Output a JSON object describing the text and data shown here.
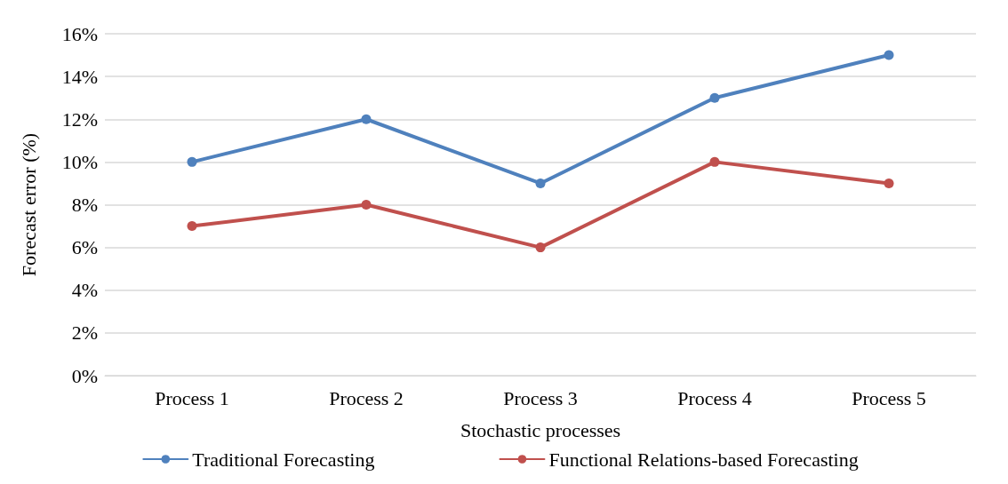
{
  "chart_data": {
    "type": "line",
    "xlabel": "Stochastic processes",
    "ylabel": "Forecast error (%)",
    "categories": [
      "Process 1",
      "Process 2",
      "Process 3",
      "Process 4",
      "Process 5"
    ],
    "series": [
      {
        "name": "Traditional Forecasting",
        "color": "#4f81bd",
        "values": [
          10,
          12,
          9,
          13,
          15
        ]
      },
      {
        "name": "Functional Relations-based Forecasting",
        "color": "#c0504d",
        "values": [
          7,
          8,
          6,
          10,
          9
        ]
      }
    ],
    "ylim": [
      0,
      16
    ],
    "yticks": [
      {
        "value": 0,
        "label": "0%"
      },
      {
        "value": 2,
        "label": "2%"
      },
      {
        "value": 4,
        "label": "4%"
      },
      {
        "value": 6,
        "label": "6%"
      },
      {
        "value": 8,
        "label": "8%"
      },
      {
        "value": 10,
        "label": "10%"
      },
      {
        "value": 12,
        "label": "12%"
      },
      {
        "value": 14,
        "label": "14%"
      },
      {
        "value": 16,
        "label": "16%"
      }
    ],
    "grid": "y",
    "legend": "bottom",
    "marker": "circle",
    "line_style": "solid"
  }
}
